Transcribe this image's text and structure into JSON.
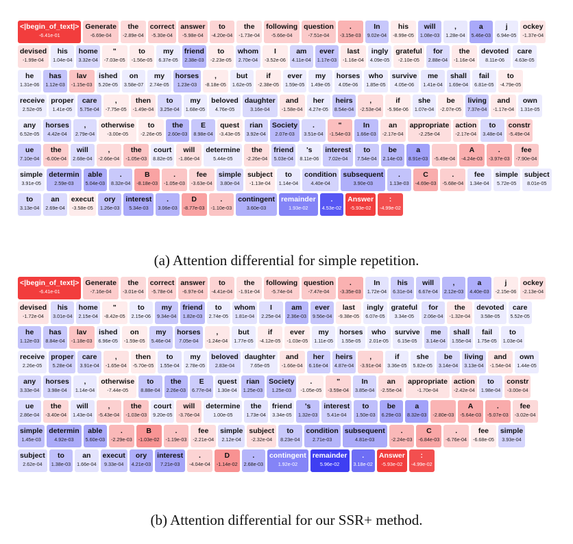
{
  "panel_a": {
    "caption": "(a) Attention differential for simple repetition.",
    "tokens": [
      [
        "<|begin_of_text|>",
        "-6.41e-01"
      ],
      [
        "Generate",
        "-6.69e-04"
      ],
      [
        "the",
        "-2.89e-04"
      ],
      [
        "correct",
        "-5.30e-04"
      ],
      [
        "answer",
        "-5.98e-04"
      ],
      [
        "to",
        "-4.20e-04"
      ],
      [
        "the",
        "-1.73e-04"
      ],
      [
        "following",
        "-5.66e-04"
      ],
      [
        "question",
        "-7.51e-04"
      ],
      [
        ".",
        "-3.15e-03"
      ],
      [
        "In",
        "9.02e-04"
      ],
      [
        "his",
        "-8.99e-05"
      ],
      [
        "will",
        "1.08e-03"
      ],
      [
        ",",
        "1.28e-04"
      ],
      [
        "a",
        "5.46e-03"
      ],
      [
        "j",
        "6.94e-05"
      ],
      [
        "ockey",
        "-1.37e-04"
      ],
      [
        "devised",
        "-1.99e-04"
      ],
      [
        "his",
        "1.04e-04"
      ],
      [
        "home",
        "3.32e-04"
      ],
      [
        "\"",
        "-7.03e-05"
      ],
      [
        "to",
        "-1.56e-05"
      ],
      [
        "my",
        "6.37e-05"
      ],
      [
        "friend",
        "2.38e-03"
      ],
      [
        "to",
        "-2.23e-05"
      ],
      [
        "whom",
        "2.70e-04"
      ],
      [
        "I",
        "-3.52e-06"
      ],
      [
        "am",
        "4.11e-04"
      ],
      [
        "ever",
        "1.17e-03"
      ],
      [
        "last",
        "-1.16e-04"
      ],
      [
        "ingly",
        "4.09e-05"
      ],
      [
        "grateful",
        "-2.10e-05"
      ],
      [
        "for",
        "2.88e-04"
      ],
      [
        "the",
        "-1.16e-04"
      ],
      [
        "devoted",
        "8.11e-06"
      ],
      [
        "care",
        "4.63e-05"
      ],
      [
        "he",
        "1.31e-06"
      ],
      [
        "has",
        "1.12e-03"
      ],
      [
        "lav",
        "-1.15e-03"
      ],
      [
        "ished",
        "5.20e-05"
      ],
      [
        "on",
        "3.58e-07"
      ],
      [
        "my",
        "2.74e-05"
      ],
      [
        "horses",
        "1.23e-03"
      ],
      [
        ",",
        "-8.18e-05"
      ],
      [
        "but",
        "1.62e-05"
      ],
      [
        "if",
        "-2.38e-05"
      ],
      [
        "ever",
        "1.59e-05"
      ],
      [
        "my",
        "1.49e-05"
      ],
      [
        "horses",
        "4.05e-06"
      ],
      [
        "who",
        "1.85e-05"
      ],
      [
        "survive",
        "4.05e-06"
      ],
      [
        "me",
        "1.41e-04"
      ],
      [
        "shall",
        "1.69e-04"
      ],
      [
        "fail",
        "6.81e-05"
      ],
      [
        "to",
        "-4.79e-05"
      ],
      [
        "receive",
        "2.52e-05"
      ],
      [
        "proper",
        "1.41e-05"
      ],
      [
        "care",
        "5.75e-04"
      ],
      [
        ",",
        "-7.75e-05"
      ],
      [
        "then",
        "-1.49e-04"
      ],
      [
        "to",
        "3.25e-04"
      ],
      [
        "my",
        "1.68e-05"
      ],
      [
        "beloved",
        "4.76e-05"
      ],
      [
        "daughter",
        "3.16e-04"
      ],
      [
        "and",
        "-1.58e-04"
      ],
      [
        "her",
        "4.27e-05"
      ],
      [
        "heirs",
        "8.54e-04"
      ],
      [
        ",",
        "-2.53e-04"
      ],
      [
        "if",
        "-5.96e-06"
      ],
      [
        "she",
        "1.07e-04"
      ],
      [
        "be",
        "-2.07e-05"
      ],
      [
        "living",
        "7.37e-04"
      ],
      [
        "and",
        "-1.17e-04"
      ],
      [
        "own",
        "1.31e-05"
      ],
      [
        "any",
        "6.52e-05"
      ],
      [
        "horses",
        "4.42e-04"
      ],
      [
        ",",
        "2.79e-04"
      ],
      [
        "otherwise",
        "-3.00e-05"
      ],
      [
        "to",
        "-2.26e-05"
      ],
      [
        "the",
        "2.60e-03"
      ],
      [
        "E",
        "8.98e-04"
      ],
      [
        "quest",
        "-3.43e-05"
      ],
      [
        "rian",
        "3.92e-04"
      ],
      [
        "Society",
        "2.07e-03"
      ],
      [
        ".",
        "3.51e-04"
      ],
      [
        "\"",
        "-1.54e-03"
      ],
      [
        "In",
        "1.66e-03"
      ],
      [
        "an",
        "-2.17e-04"
      ],
      [
        "appropriate",
        "-2.25e-04"
      ],
      [
        "action",
        "-2.17e-04"
      ],
      [
        "to",
        "3.48e-04"
      ],
      [
        "constr",
        "-5.49e-04"
      ],
      [
        "ue",
        "7.10e-04"
      ],
      [
        "the",
        "-6.00e-04"
      ],
      [
        "will",
        "2.68e-04"
      ],
      [
        ",",
        "-2.66e-04"
      ],
      [
        "the",
        "-1.05e-03"
      ],
      [
        "court",
        "8.82e-05"
      ],
      [
        "will",
        "-1.86e-04"
      ],
      [
        "determine",
        "5.44e-05"
      ],
      [
        "the",
        "-2.26e-04"
      ],
      [
        "friend",
        "5.03e-04"
      ],
      [
        "'s",
        "8.11e-06"
      ],
      [
        "interest",
        "7.02e-04"
      ],
      [
        "to",
        "7.54e-04"
      ],
      [
        "be",
        "2.14e-03"
      ],
      [
        "a",
        "8.91e-03"
      ],
      [
        " ",
        "-5.49e-04"
      ],
      [
        "A",
        "-4.24e-03"
      ],
      [
        ".",
        "-3.97e-03"
      ],
      [
        "fee",
        "-7.90e-04"
      ],
      [
        "simple",
        "3.91e-05"
      ],
      [
        "determin",
        "2.59e-03"
      ],
      [
        "able",
        "5.04e-03"
      ],
      [
        ".",
        "8.32e-04"
      ],
      [
        "B",
        "-8.18e-03"
      ],
      [
        ".",
        "-1.05e-03"
      ],
      [
        "fee",
        "-3.63e-04"
      ],
      [
        "simple",
        "3.80e-04"
      ],
      [
        "subject",
        "-1.13e-04"
      ],
      [
        "to",
        "1.14e-04"
      ],
      [
        "condition",
        "4.40e-04"
      ],
      [
        "subsequent",
        "3.90e-03"
      ],
      [
        ".",
        "1.13e-03"
      ],
      [
        "C",
        "-4.69e-03"
      ],
      [
        ".",
        "-5.68e-04"
      ],
      [
        "fee",
        "1.34e-04"
      ],
      [
        "simple",
        "5.72e-05"
      ],
      [
        "subject",
        "8.01e-05"
      ],
      [
        "to",
        "3.13e-04"
      ],
      [
        "an",
        "2.69e-04"
      ],
      [
        "execut",
        "-3.58e-05"
      ],
      [
        "ory",
        "1.26e-03"
      ],
      [
        "interest",
        "5.34e-03"
      ],
      [
        ".",
        "3.06e-03"
      ],
      [
        "D",
        "-8.77e-03"
      ],
      [
        ".",
        "-1.10e-03"
      ],
      [
        "contingent",
        "3.60e-03"
      ],
      [
        "remainder",
        "1.93e-02"
      ],
      [
        ".",
        "4.53e-02"
      ],
      [
        "Answer",
        "-5.93e-02"
      ],
      [
        ":",
        "-4.99e-02"
      ]
    ]
  },
  "panel_b": {
    "caption": "(b) Attention differential for our SSR+ method.",
    "tokens": [
      [
        "<|begin_of_text|>",
        "-6.41e-01"
      ],
      [
        "Generate",
        "-7.16e-04"
      ],
      [
        "the",
        "-3.01e-04"
      ],
      [
        "correct",
        "-5.78e-04"
      ],
      [
        "answer",
        "-6.97e-04"
      ],
      [
        "to",
        "-4.41e-04"
      ],
      [
        "the",
        "-1.91e-04"
      ],
      [
        "following",
        "-5.74e-04"
      ],
      [
        "question",
        "-7.47e-04"
      ],
      [
        ".",
        "-3.35e-03"
      ],
      [
        "In",
        "1.72e-04"
      ],
      [
        "his",
        "6.31e-04"
      ],
      [
        "will",
        "6.67e-04"
      ],
      [
        ",",
        "2.12e-03"
      ],
      [
        "a",
        "4.40e-03"
      ],
      [
        "j",
        "-2.15e-06"
      ],
      [
        "ockey",
        "-2.13e-04"
      ],
      [
        "devised",
        "-1.72e-04"
      ],
      [
        "his",
        "3.01e-04"
      ],
      [
        "home",
        "2.15e-04"
      ],
      [
        "\"",
        "-8.42e-05"
      ],
      [
        "to",
        "2.15e-06"
      ],
      [
        "my",
        "9.34e-04"
      ],
      [
        "friend",
        "1.82e-03"
      ],
      [
        "to",
        "2.74e-05"
      ],
      [
        "whom",
        "1.81e-04"
      ],
      [
        "I",
        "2.25e-04"
      ],
      [
        "am",
        "2.36e-03"
      ],
      [
        "ever",
        "9.56e-04"
      ],
      [
        "last",
        "-9.38e-05"
      ],
      [
        "ingly",
        "6.07e-05"
      ],
      [
        "grateful",
        "3.34e-05"
      ],
      [
        "for",
        "2.06e-04"
      ],
      [
        "the",
        "-1.32e-04"
      ],
      [
        "devoted",
        "3.58e-05"
      ],
      [
        "care",
        "5.52e-05"
      ],
      [
        "he",
        "1.12e-03"
      ],
      [
        "has",
        "8.84e-04"
      ],
      [
        "lav",
        "-1.18e-03"
      ],
      [
        "ished",
        "6.96e-05"
      ],
      [
        "on",
        "-1.59e-05"
      ],
      [
        "my",
        "5.46e-04"
      ],
      [
        "horses",
        "7.05e-04"
      ],
      [
        ",",
        "-1.24e-04"
      ],
      [
        "but",
        "1.77e-05"
      ],
      [
        "if",
        "-4.12e-05"
      ],
      [
        "ever",
        "-1.03e-05"
      ],
      [
        "my",
        "1.11e-05"
      ],
      [
        "horses",
        "1.55e-05"
      ],
      [
        "who",
        "2.01e-05"
      ],
      [
        "survive",
        "6.15e-05"
      ],
      [
        "me",
        "3.14e-04"
      ],
      [
        "shall",
        "1.55e-04"
      ],
      [
        "fail",
        "1.75e-05"
      ],
      [
        "to",
        "1.03e-04"
      ],
      [
        "receive",
        "2.26e-05"
      ],
      [
        "proper",
        "5.28e-04"
      ],
      [
        "care",
        "3.91e-04"
      ],
      [
        ",",
        "-1.65e-04"
      ],
      [
        "then",
        "-5.70e-05"
      ],
      [
        "to",
        "1.55e-04"
      ],
      [
        "my",
        "2.78e-05"
      ],
      [
        "beloved",
        "2.83e-04"
      ],
      [
        "daughter",
        "7.65e-05"
      ],
      [
        "and",
        "-1.66e-04"
      ],
      [
        "her",
        "6.16e-04"
      ],
      [
        "heirs",
        "4.87e-04"
      ],
      [
        ",",
        "-3.91e-04"
      ],
      [
        "if",
        "3.36e-05"
      ],
      [
        "she",
        "5.82e-05"
      ],
      [
        "be",
        "3.14e-04"
      ],
      [
        "living",
        "3.13e-04"
      ],
      [
        "and",
        "-1.54e-04"
      ],
      [
        "own",
        "1.44e-05"
      ],
      [
        "any",
        "3.33e-04"
      ],
      [
        "horses",
        "3.98e-04"
      ],
      [
        ",",
        "1.14e-04"
      ],
      [
        "otherwise",
        "-7.44e-05"
      ],
      [
        "to",
        "8.88e-04"
      ],
      [
        "the",
        "2.26e-03"
      ],
      [
        "E",
        "6.77e-04"
      ],
      [
        "quest",
        "1.30e-04"
      ],
      [
        "rian",
        "1.25e-03"
      ],
      [
        "Society",
        "1.25e-03"
      ],
      [
        ".",
        "-1.05e-05"
      ],
      [
        "\"",
        "-3.59e-04"
      ],
      [
        "In",
        "3.85e-04"
      ],
      [
        "an",
        "-2.55e-04"
      ],
      [
        "appropriate",
        "-1.70e-04"
      ],
      [
        "action",
        "-2.42e-04"
      ],
      [
        "to",
        "1.98e-04"
      ],
      [
        "constr",
        "-3.00e-04"
      ],
      [
        "ue",
        "2.86e-04"
      ],
      [
        "the",
        "-3.40e-04"
      ],
      [
        "will",
        "1.43e-04"
      ],
      [
        ",",
        "-5.43e-04"
      ],
      [
        "the",
        "-1.03e-03"
      ],
      [
        "court",
        "9.20e-05"
      ],
      [
        "will",
        "-3.76e-04"
      ],
      [
        "determine",
        "1.00e-05"
      ],
      [
        "the",
        "1.73e-04"
      ],
      [
        "friend",
        "3.34e-05"
      ],
      [
        "'s",
        "1.32e-03"
      ],
      [
        "interest",
        "5.41e-04"
      ],
      [
        "to",
        "1.50e-03"
      ],
      [
        "be",
        "6.29e-03"
      ],
      [
        "a",
        "8.32e-03"
      ],
      [
        " ",
        "-2.80e-03"
      ],
      [
        "A",
        "-5.64e-03"
      ],
      [
        ".",
        "-5.07e-03"
      ],
      [
        "fee",
        "-3.02e-04"
      ],
      [
        "simple",
        "1.45e-03"
      ],
      [
        "determin",
        "4.92e-03"
      ],
      [
        "able",
        "5.60e-03"
      ],
      [
        ".",
        "-2.29e-03"
      ],
      [
        "B",
        "-1.03e-02"
      ],
      [
        ".",
        "-1.19e-03"
      ],
      [
        "fee",
        "-2.21e-04"
      ],
      [
        "simple",
        "2.12e-04"
      ],
      [
        "subject",
        "-2.32e-04"
      ],
      [
        "to",
        "8.23e-04"
      ],
      [
        "condition",
        "2.71e-03"
      ],
      [
        "subsequent",
        "4.81e-03"
      ],
      [
        ".",
        "-2.24e-03"
      ],
      [
        "C",
        "-6.84e-03"
      ],
      [
        ".",
        "-6.76e-04"
      ],
      [
        "fee",
        "-6.68e-05"
      ],
      [
        "simple",
        "3.93e-04"
      ],
      [
        "subject",
        "2.62e-04"
      ],
      [
        "to",
        "1.38e-03"
      ],
      [
        "an",
        "1.66e-04"
      ],
      [
        "execut",
        "9.33e-04"
      ],
      [
        "ory",
        "4.21e-03"
      ],
      [
        "interest",
        "7.21e-03"
      ],
      [
        ".",
        "-4.04e-04"
      ],
      [
        "D",
        "-1.14e-02"
      ],
      [
        ".",
        "2.68e-03"
      ],
      [
        "contingent",
        "1.92e-02"
      ],
      [
        "remainder",
        "5.96e-02"
      ],
      [
        ".",
        "3.18e-02"
      ],
      [
        "Answer",
        "-5.93e-02"
      ],
      [
        ":",
        "-4.99e-02"
      ]
    ]
  },
  "colors": {
    "positive": "#3d3df2",
    "negative": "#f23d3d",
    "strong_positive": "#0b0bef",
    "strong_negative": "#ef0b0b"
  }
}
